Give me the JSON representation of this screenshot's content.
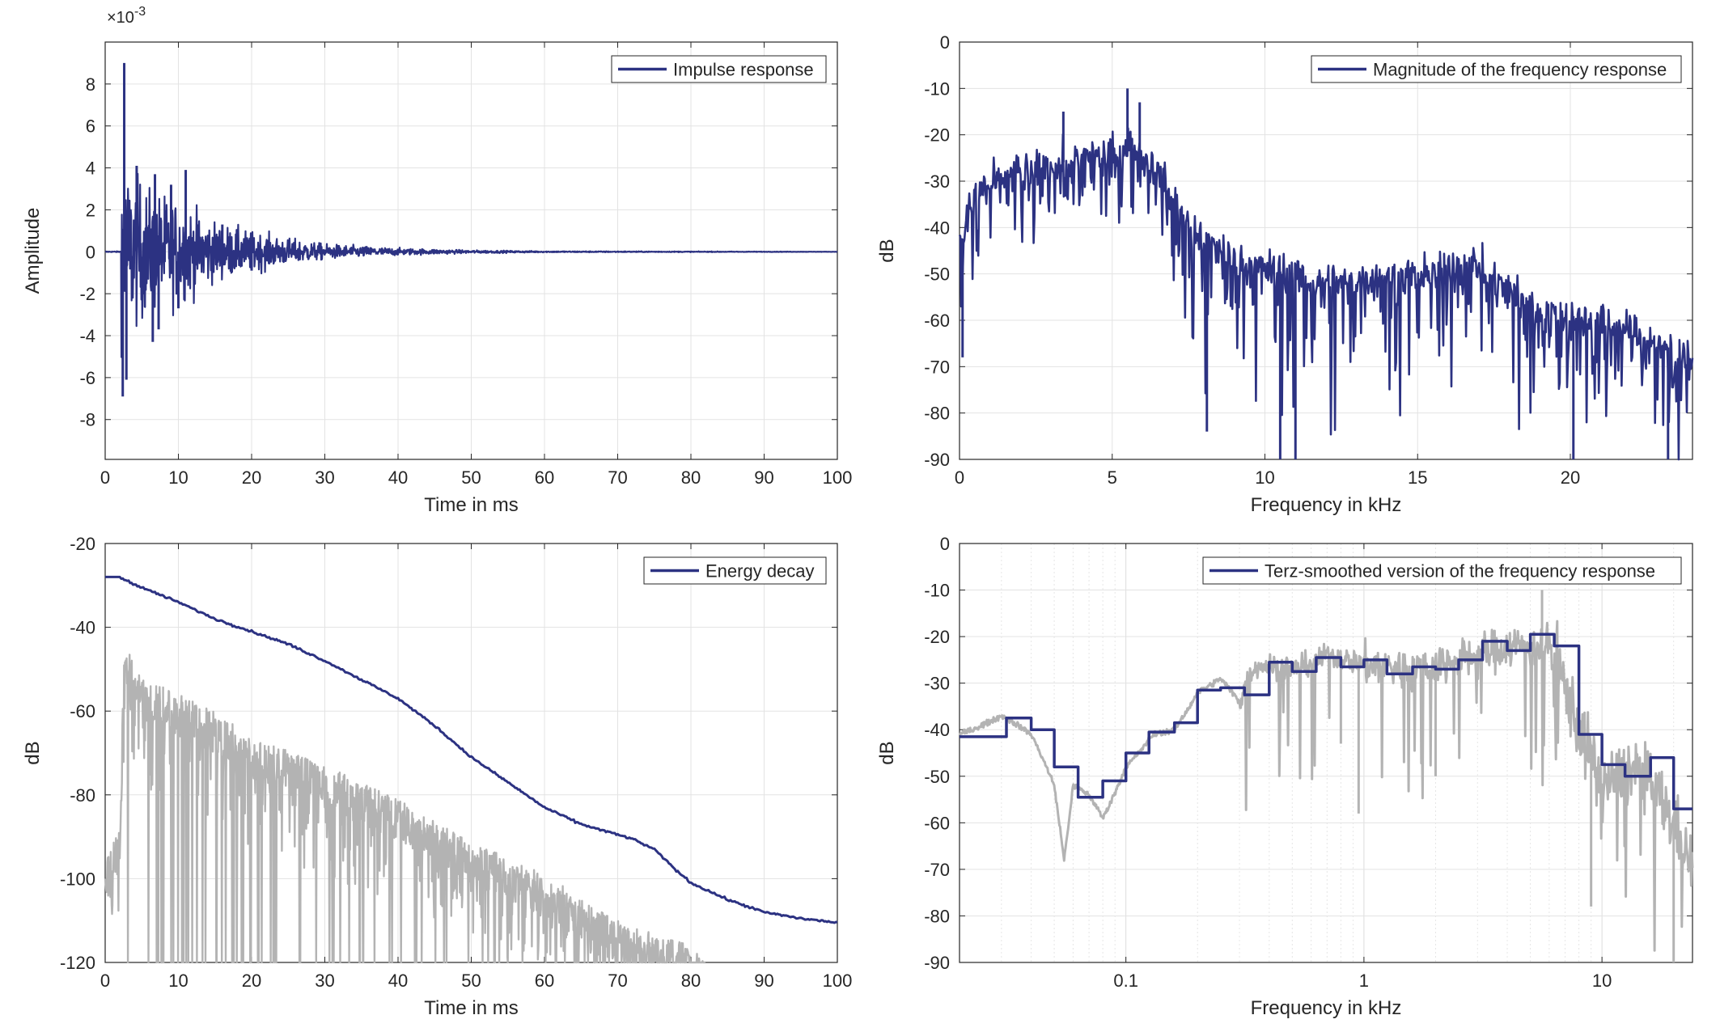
{
  "chart_data": [
    {
      "type": "line",
      "id": "impulse",
      "xlabel": "Time in ms",
      "ylabel": "Amplitude",
      "exponent_label": "×10",
      "exponent_power": "-3",
      "xlim": [
        0,
        100
      ],
      "ylim": [
        -9.9,
        10
      ],
      "xticks": [
        0,
        10,
        20,
        30,
        40,
        50,
        60,
        70,
        80,
        90,
        100
      ],
      "xtick_labels": [
        "0",
        "10",
        "20",
        "30",
        "40",
        "50",
        "60",
        "70",
        "80",
        "90",
        "100"
      ],
      "yticks": [
        -8,
        -6,
        -4,
        -2,
        0,
        2,
        4,
        6,
        8
      ],
      "ytick_labels": [
        "-8",
        "-6",
        "-4",
        "-2",
        "0",
        "2",
        "4",
        "6",
        "8"
      ],
      "grid": true,
      "legend_position": "top-right",
      "series": [
        {
          "name": "Impulse response",
          "color": "#2c3282",
          "peaks": [
            {
              "x": 2.6,
              "y": 9.0
            },
            {
              "x": 2.4,
              "y": -6.9
            },
            {
              "x": 2.9,
              "y": -6.1
            },
            {
              "x": 4.3,
              "y": 4.1
            },
            {
              "x": 6.5,
              "y": -4.3
            },
            {
              "x": 6.8,
              "y": 3.7
            },
            {
              "x": 7.3,
              "y": -3.7
            },
            {
              "x": 9.0,
              "y": 3.2
            },
            {
              "x": 10.0,
              "y": -2.7
            },
            {
              "x": 11.0,
              "y": 3.9
            },
            {
              "x": 16.0,
              "y": 1.3
            },
            {
              "x": 20.0,
              "y": -0.9
            }
          ],
          "envelope": [
            {
              "t": 2.5,
              "a": 3.8
            },
            {
              "t": 6,
              "a": 2.8
            },
            {
              "t": 10,
              "a": 2.3
            },
            {
              "t": 15,
              "a": 1.3
            },
            {
              "t": 20,
              "a": 0.9
            },
            {
              "t": 25,
              "a": 0.6
            },
            {
              "t": 30,
              "a": 0.35
            },
            {
              "t": 40,
              "a": 0.16
            },
            {
              "t": 50,
              "a": 0.07
            },
            {
              "t": 60,
              "a": 0.03
            },
            {
              "t": 100,
              "a": 0.005
            }
          ]
        }
      ]
    },
    {
      "type": "line",
      "id": "magnitude",
      "xlabel": "Frequency in kHz",
      "ylabel": "dB",
      "xlim": [
        0,
        24
      ],
      "ylim": [
        -90,
        0
      ],
      "xticks": [
        0,
        5,
        10,
        15,
        20
      ],
      "xtick_labels": [
        "0",
        "5",
        "10",
        "15",
        "20"
      ],
      "yticks": [
        -90,
        -80,
        -70,
        -60,
        -50,
        -40,
        -30,
        -20,
        -10,
        0
      ],
      "ytick_labels": [
        "-90",
        "-80",
        "-70",
        "-60",
        "-50",
        "-40",
        "-30",
        "-20",
        "-10",
        "0"
      ],
      "grid": true,
      "legend_position": "top-right",
      "series": [
        {
          "name": "Magnitude of the frequency response",
          "color": "#2c3282",
          "trend": [
            {
              "x": 0,
              "y": -45
            },
            {
              "x": 0.5,
              "y": -32
            },
            {
              "x": 2,
              "y": -28
            },
            {
              "x": 4,
              "y": -25
            },
            {
              "x": 5.5,
              "y": -22
            },
            {
              "x": 6.5,
              "y": -28
            },
            {
              "x": 7.5,
              "y": -40
            },
            {
              "x": 9,
              "y": -47
            },
            {
              "x": 12,
              "y": -52
            },
            {
              "x": 15,
              "y": -50
            },
            {
              "x": 17,
              "y": -48
            },
            {
              "x": 19,
              "y": -58
            },
            {
              "x": 21,
              "y": -60
            },
            {
              "x": 24,
              "y": -68
            }
          ],
          "peaks": [
            {
              "x": 5.5,
              "y": -10
            },
            {
              "x": 5.9,
              "y": -13
            },
            {
              "x": 3.4,
              "y": -15
            },
            {
              "x": 0.1,
              "y": -68
            },
            {
              "x": 11.0,
              "y": -90
            },
            {
              "x": 10.5,
              "y": -90
            },
            {
              "x": 20.1,
              "y": -90
            },
            {
              "x": 23.2,
              "y": -90
            },
            {
              "x": 8.1,
              "y": -84
            }
          ]
        }
      ]
    },
    {
      "type": "line",
      "id": "energy",
      "xlabel": "Time in ms",
      "ylabel": "dB",
      "xlim": [
        0,
        100
      ],
      "ylim": [
        -120,
        -20
      ],
      "xticks": [
        0,
        10,
        20,
        30,
        40,
        50,
        60,
        70,
        80,
        90,
        100
      ],
      "xtick_labels": [
        "0",
        "10",
        "20",
        "30",
        "40",
        "50",
        "60",
        "70",
        "80",
        "90",
        "100"
      ],
      "yticks": [
        -120,
        -100,
        -80,
        -60,
        -40,
        -20
      ],
      "ytick_labels": [
        "-120",
        "-100",
        "-80",
        "-60",
        "-40",
        "-20"
      ],
      "grid": true,
      "legend_position": "top-right",
      "series": [
        {
          "name": "Energy decay",
          "color": "#2c3282",
          "x": [
            0,
            2,
            2.5,
            5,
            10,
            15,
            20,
            25,
            30,
            35,
            40,
            45,
            50,
            55,
            60,
            65,
            70,
            72,
            75,
            78,
            80,
            85,
            90,
            95,
            100
          ],
          "y": [
            -28,
            -28,
            -28.5,
            -30.5,
            -34,
            -38,
            -41,
            -44,
            -48,
            -52.5,
            -57,
            -63.5,
            -71,
            -77,
            -83,
            -87,
            -89.5,
            -90.5,
            -93,
            -98,
            -101,
            -105,
            -108,
            -109.5,
            -110.5
          ]
        },
        {
          "color": "#b3b3b3",
          "envelope": [
            {
              "t": 0,
              "y": -96
            },
            {
              "t": 2,
              "y": -88
            },
            {
              "t": 2.6,
              "y": -44
            },
            {
              "t": 5,
              "y": -52
            },
            {
              "t": 10,
              "y": -56
            },
            {
              "t": 15,
              "y": -60
            },
            {
              "t": 20,
              "y": -66
            },
            {
              "t": 30,
              "y": -73
            },
            {
              "t": 40,
              "y": -81
            },
            {
              "t": 50,
              "y": -91
            },
            {
              "t": 60,
              "y": -99
            },
            {
              "t": 70,
              "y": -110
            },
            {
              "t": 80,
              "y": -116
            },
            {
              "t": 82,
              "y": -120
            }
          ]
        }
      ]
    },
    {
      "type": "line",
      "id": "terz",
      "xscale": "log",
      "xlabel": "Frequency in kHz",
      "ylabel": "dB",
      "xlim": [
        0.02,
        24
      ],
      "ylim": [
        -90,
        0
      ],
      "xticks": [
        0.1,
        1,
        10
      ],
      "xtick_labels": [
        "0.1",
        "1",
        "10"
      ],
      "yticks": [
        -90,
        -80,
        -70,
        -60,
        -50,
        -40,
        -30,
        -20,
        -10,
        0
      ],
      "ytick_labels": [
        "-90",
        "-80",
        "-70",
        "-60",
        "-50",
        "-40",
        "-30",
        "-20",
        "-10",
        "0"
      ],
      "grid": true,
      "legend_position": "top-right",
      "series": [
        {
          "name": "Terz-smoothed version of the frequency response",
          "color": "#2c3282",
          "bands": [
            {
              "f": 0.02,
              "y": -41.5
            },
            {
              "f": 0.0315,
              "y": -37.5
            },
            {
              "f": 0.04,
              "y": -40
            },
            {
              "f": 0.05,
              "y": -48
            },
            {
              "f": 0.063,
              "y": -54.5
            },
            {
              "f": 0.08,
              "y": -51
            },
            {
              "f": 0.1,
              "y": -45
            },
            {
              "f": 0.125,
              "y": -40.5
            },
            {
              "f": 0.16,
              "y": -38.5
            },
            {
              "f": 0.2,
              "y": -31.5
            },
            {
              "f": 0.25,
              "y": -31
            },
            {
              "f": 0.315,
              "y": -32.5
            },
            {
              "f": 0.4,
              "y": -25.5
            },
            {
              "f": 0.5,
              "y": -27.5
            },
            {
              "f": 0.63,
              "y": -24.5
            },
            {
              "f": 0.8,
              "y": -26.5
            },
            {
              "f": 1.0,
              "y": -25
            },
            {
              "f": 1.25,
              "y": -28
            },
            {
              "f": 1.6,
              "y": -26.5
            },
            {
              "f": 2.0,
              "y": -27
            },
            {
              "f": 2.5,
              "y": -25
            },
            {
              "f": 3.15,
              "y": -21
            },
            {
              "f": 4.0,
              "y": -23
            },
            {
              "f": 5.0,
              "y": -19.5
            },
            {
              "f": 6.3,
              "y": -22
            },
            {
              "f": 8.0,
              "y": -41
            },
            {
              "f": 10.0,
              "y": -47.5
            },
            {
              "f": 12.5,
              "y": -50
            },
            {
              "f": 16.0,
              "y": -46
            },
            {
              "f": 20.0,
              "y": -57
            },
            {
              "f": 24.0,
              "y": -57
            }
          ]
        },
        {
          "color": "#b3b3b3",
          "trend": [
            {
              "f": 0.02,
              "y": -41
            },
            {
              "f": 0.03,
              "y": -37
            },
            {
              "f": 0.04,
              "y": -41
            },
            {
              "f": 0.05,
              "y": -52
            },
            {
              "f": 0.055,
              "y": -68
            },
            {
              "f": 0.06,
              "y": -52
            },
            {
              "f": 0.07,
              "y": -54
            },
            {
              "f": 0.08,
              "y": -59
            },
            {
              "f": 0.1,
              "y": -48
            },
            {
              "f": 0.13,
              "y": -41
            },
            {
              "f": 0.16,
              "y": -40
            },
            {
              "f": 0.2,
              "y": -32
            },
            {
              "f": 0.25,
              "y": -29
            },
            {
              "f": 0.3,
              "y": -34
            },
            {
              "f": 0.35,
              "y": -26
            },
            {
              "f": 0.5,
              "y": -27
            },
            {
              "f": 0.7,
              "y": -24
            },
            {
              "f": 1.0,
              "y": -26
            },
            {
              "f": 1.5,
              "y": -27
            },
            {
              "f": 2.5,
              "y": -25
            },
            {
              "f": 4.0,
              "y": -22
            },
            {
              "f": 6.0,
              "y": -22
            },
            {
              "f": 8.0,
              "y": -40
            },
            {
              "f": 10.0,
              "y": -52
            },
            {
              "f": 14.0,
              "y": -48
            },
            {
              "f": 20.0,
              "y": -60
            },
            {
              "f": 24.0,
              "y": -70
            }
          ],
          "dips": [
            {
              "f": 0.055,
              "y": -68
            },
            {
              "f": 0.8,
              "y": -43
            },
            {
              "f": 0.95,
              "y": -58
            },
            {
              "f": 2.0,
              "y": -50
            },
            {
              "f": 5.6,
              "y": -10
            },
            {
              "f": 9.0,
              "y": -78
            },
            {
              "f": 20.0,
              "y": -90
            }
          ]
        }
      ]
    }
  ]
}
